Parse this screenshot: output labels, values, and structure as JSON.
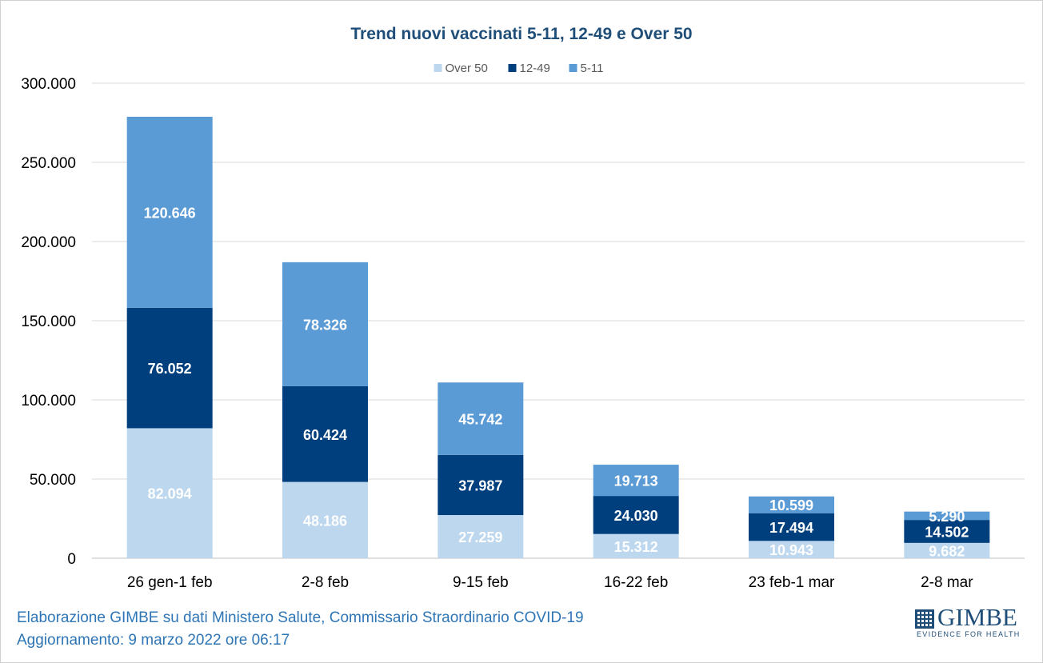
{
  "chart_data": {
    "type": "bar",
    "stacked": true,
    "title": "Trend nuovi vaccinati 5-11, 12-49 e Over 50",
    "categories": [
      "26 gen-1 feb",
      "2-8 feb",
      "9-15 feb",
      "16-22 feb",
      "23 feb-1 mar",
      "2-8 mar"
    ],
    "series": [
      {
        "name": "Over 50",
        "color": "#bdd7ee",
        "values": [
          82094,
          48186,
          27259,
          15312,
          10943,
          9682
        ],
        "labels": [
          "82.094",
          "48.186",
          "27.259",
          "15.312",
          "10.943",
          "9.682"
        ]
      },
      {
        "name": "12-49",
        "color": "#003f7d",
        "values": [
          76052,
          60424,
          37987,
          24030,
          17494,
          14502
        ],
        "labels": [
          "76.052",
          "60.424",
          "37.987",
          "24.030",
          "17.494",
          "14.502"
        ]
      },
      {
        "name": "5-11",
        "color": "#5b9bd5",
        "values": [
          120646,
          78326,
          45742,
          19713,
          10599,
          5290
        ],
        "labels": [
          "120.646",
          "78.326",
          "45.742",
          "19.713",
          "10.599",
          "5.290"
        ]
      }
    ],
    "ylim": [
      0,
      300000
    ],
    "yticks": [
      0,
      50000,
      100000,
      150000,
      200000,
      250000,
      300000
    ],
    "ytick_labels": [
      "0",
      "50.000",
      "100.000",
      "150.000",
      "200.000",
      "250.000",
      "300.000"
    ],
    "grid": true,
    "legend_position": "top-center"
  },
  "footer": {
    "line1": "Elaborazione GIMBE su dati Ministero Salute, Commissario Straordinario COVID-19",
    "line2": "Aggiornamento: 9 marzo 2022 ore 06:17"
  },
  "logo": {
    "word": "GIMBE",
    "tagline": "EVIDENCE FOR HEALTH"
  }
}
